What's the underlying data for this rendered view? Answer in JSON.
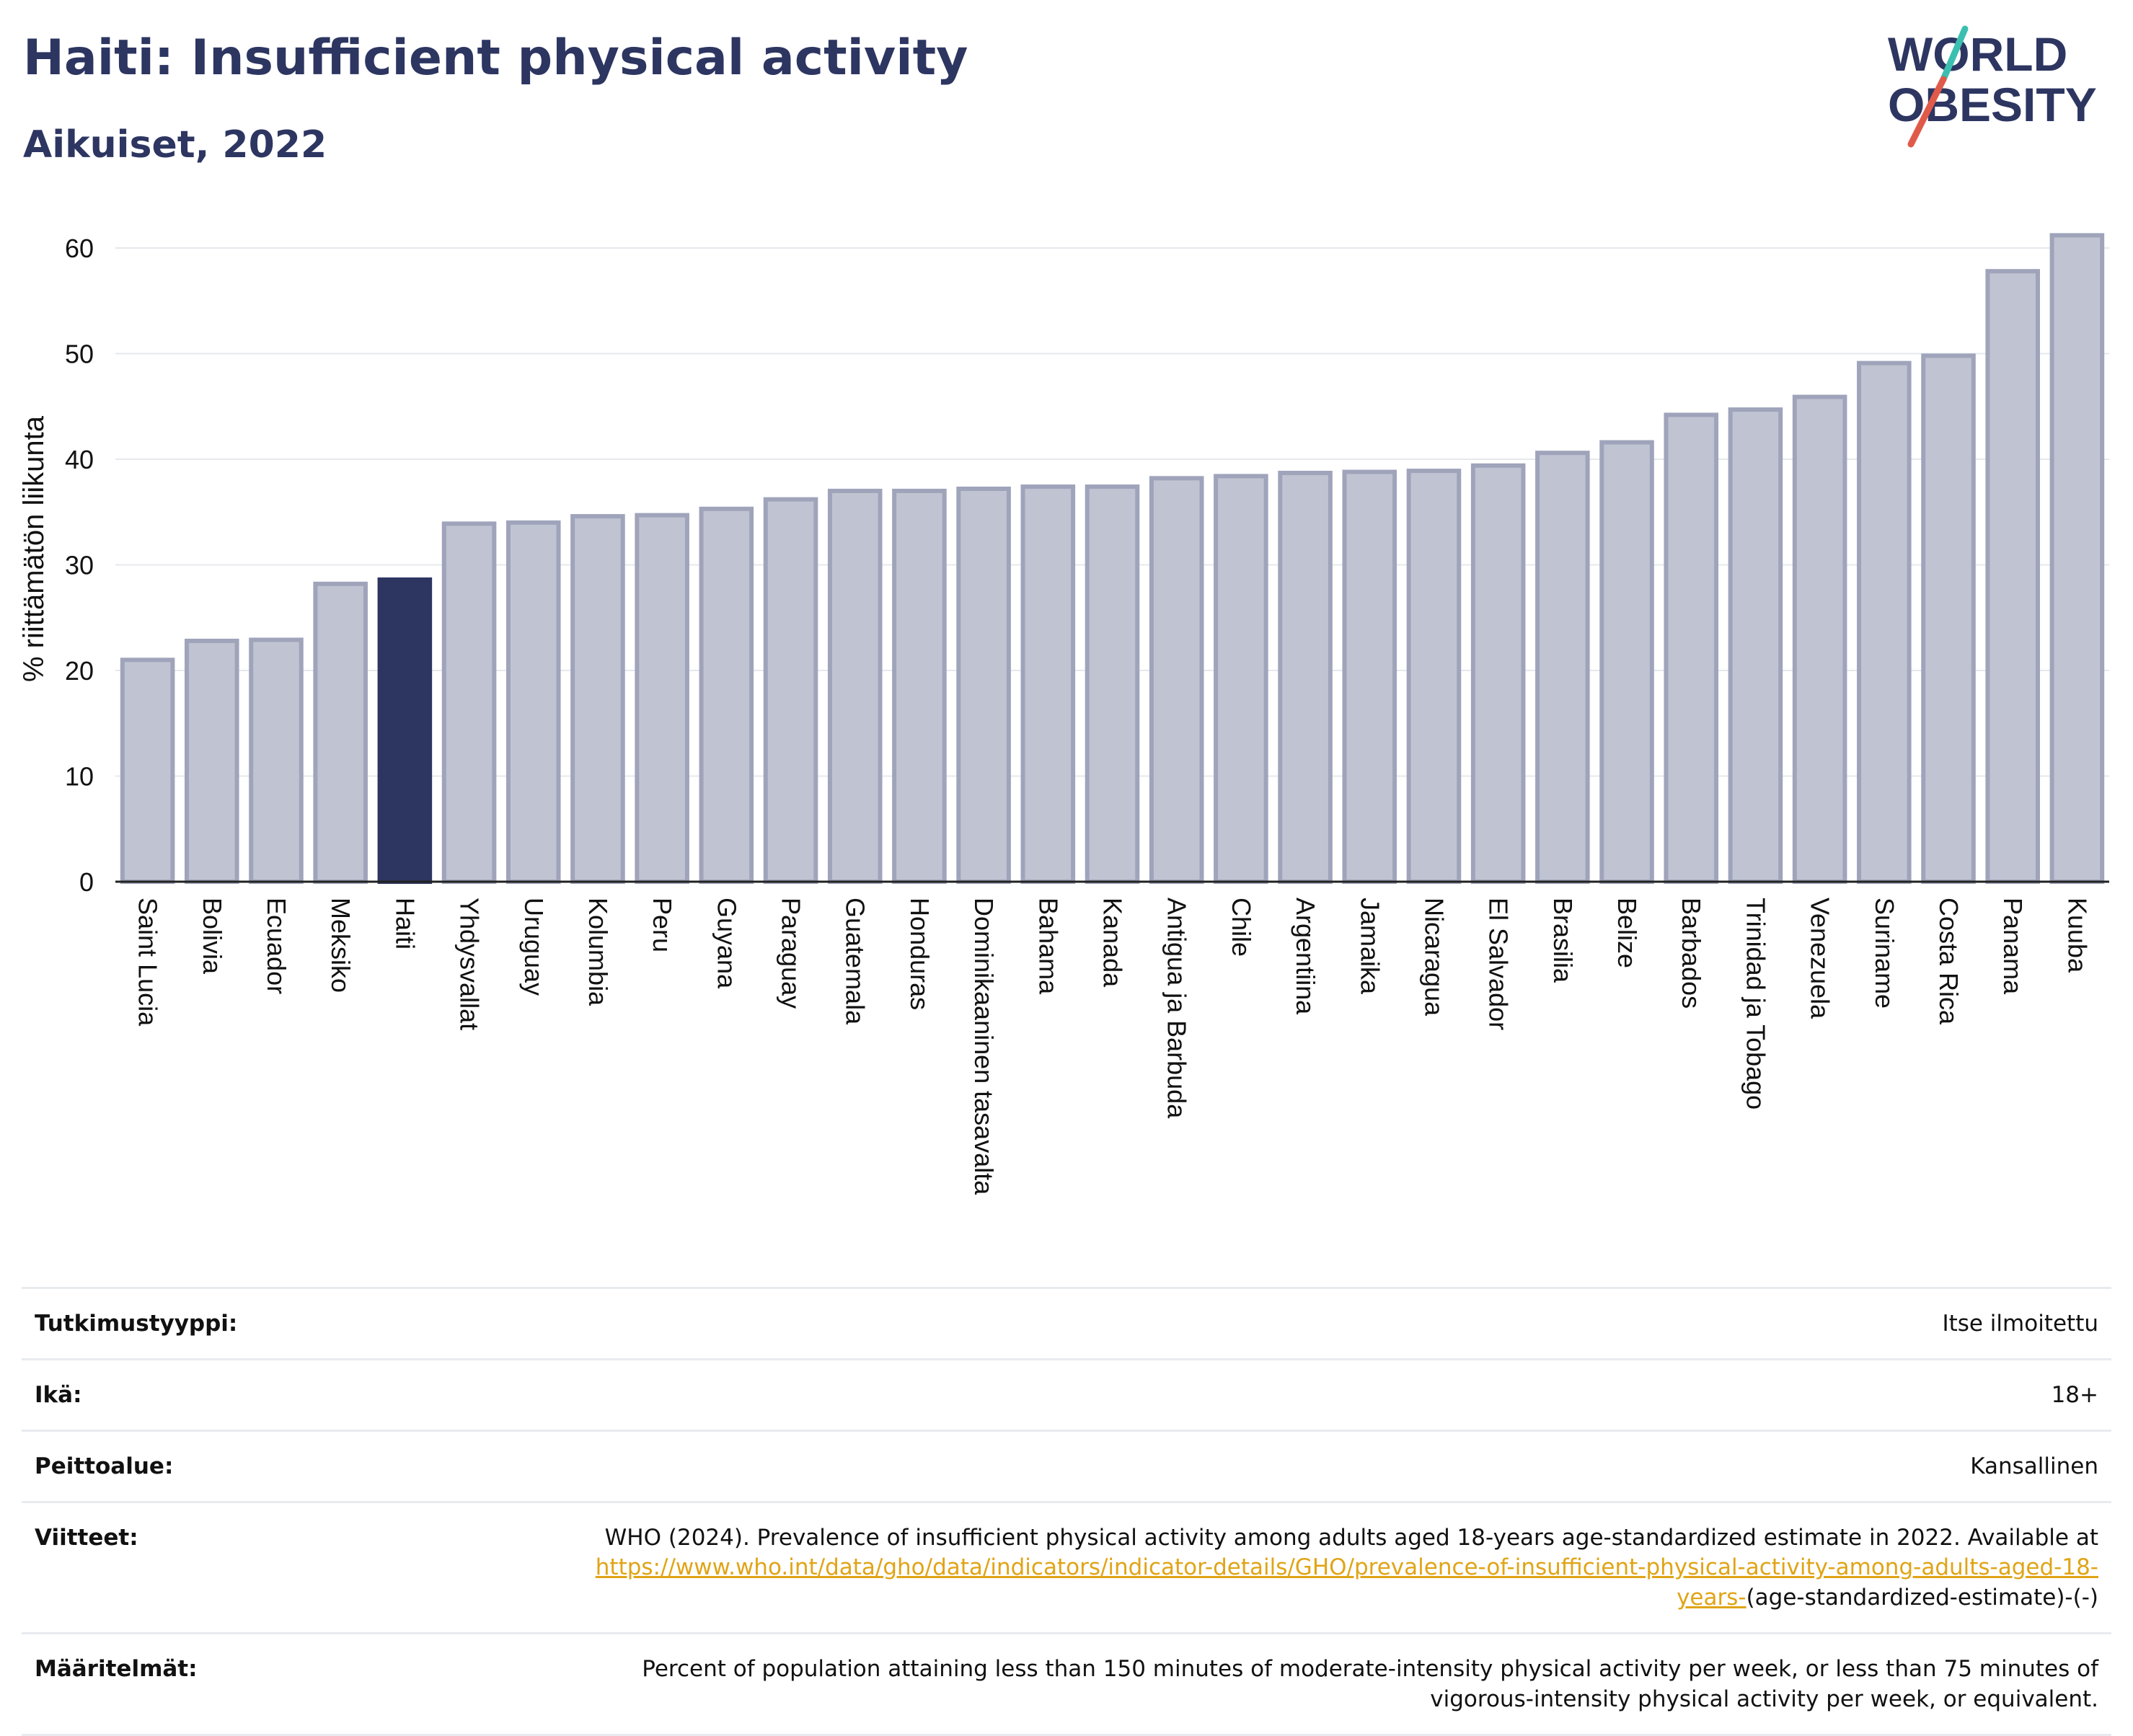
{
  "header": {
    "title": "Haiti: Insufficient physical activity",
    "subtitle": "Aikuiset, 2022"
  },
  "logo": {
    "line1": "WORLD",
    "line2": "OBESITY"
  },
  "chart_data": {
    "type": "bar",
    "ylabel": "% riittämätön liikunta",
    "ylim": [
      0,
      63
    ],
    "yticks": [
      0,
      10,
      20,
      30,
      40,
      50,
      60
    ],
    "grid": true,
    "highlight": "Haiti",
    "colors": {
      "bar": "#c0c3d1",
      "bar_edge": "#9fa4bb",
      "highlight": "#2d3561"
    },
    "categories": [
      "Saint Lucia",
      "Bolivia",
      "Ecuador",
      "Meksiko",
      "Haiti",
      "Yhdysvallat",
      "Uruguay",
      "Kolumbia",
      "Peru",
      "Guyana",
      "Paraguay",
      "Guatemala",
      "Honduras",
      "Dominikaaninen tasavalta",
      "Bahama",
      "Kanada",
      "Antigua ja Barbuda",
      "Chile",
      "Argentiina",
      "Jamaika",
      "Nicaragua",
      "El Salvador",
      "Brasilia",
      "Belize",
      "Barbados",
      "Trinidad ja Tobago",
      "Venezuela",
      "Suriname",
      "Costa Rica",
      "Panama",
      "Kuuba"
    ],
    "values": [
      21.0,
      22.8,
      22.9,
      28.2,
      28.6,
      33.9,
      34.0,
      34.6,
      34.7,
      35.3,
      36.2,
      37.0,
      37.0,
      37.2,
      37.4,
      37.4,
      38.2,
      38.4,
      38.7,
      38.8,
      38.9,
      39.4,
      40.6,
      41.6,
      44.2,
      44.7,
      45.9,
      49.1,
      49.8,
      57.8,
      61.2
    ]
  },
  "info": {
    "rows": [
      {
        "label": "Tutkimustyyppi:",
        "value": "Itse ilmoitettu"
      },
      {
        "label": "Ikä:",
        "value": "18+"
      },
      {
        "label": "Peittoalue:",
        "value": "Kansallinen"
      },
      {
        "label": "Viitteet:",
        "value": "WHO (2024). Prevalence of insufficient physical activity among adults aged 18-years age-standardized estimate in 2022. Available at",
        "link": "https://www.who.int/data/gho/data/indicators/indicator-details/GHO/prevalence-of-insufficient-physical-activity-among-adults-aged-18-years-",
        "suffix": "(age-standardized-estimate)-(-)"
      },
      {
        "label": "Määritelmät:",
        "value": "Percent of population attaining less than 150 minutes of moderate-intensity physical activity per week, or less than 75 minutes of vigorous-intensity physical activity per week, or equivalent."
      }
    ]
  }
}
